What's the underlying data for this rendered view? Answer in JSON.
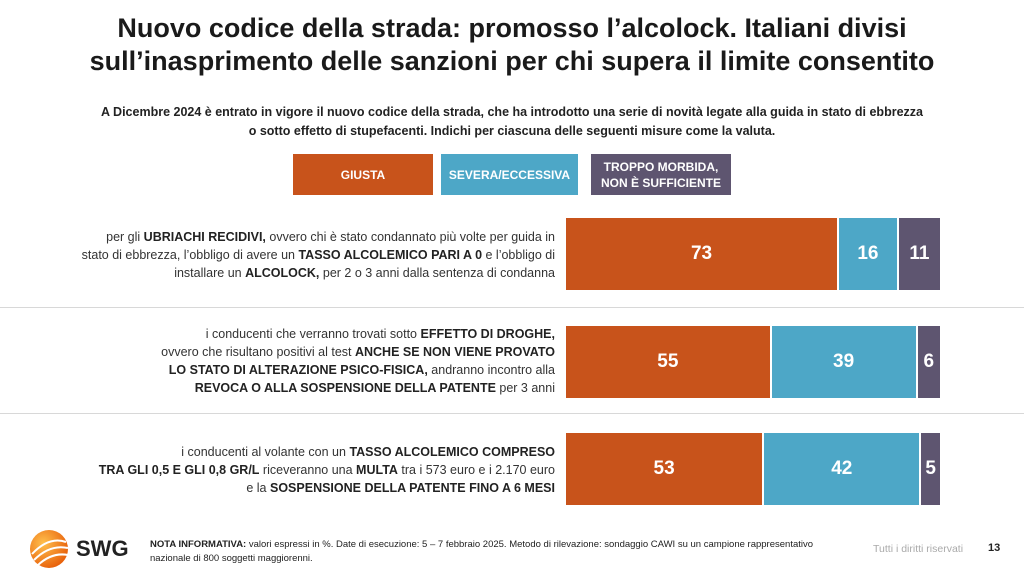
{
  "title_lines": [
    "Nuovo codice della strada: promosso l’alcolock. Italiani divisi",
    "sull’inasprimento delle sanzioni per chi supera il limite consentito"
  ],
  "subtitle_lines": [
    "A Dicembre 2024 è entrato in vigore il nuovo codice della strada, che ha introdotto una serie di novità legate alla guida in stato di ebbrezza",
    "o sotto effetto di stupefacenti. Indichi per ciascuna delle seguenti misure come la valuta."
  ],
  "legend": [
    {
      "label": "GIUSTA",
      "color": "#C8531B"
    },
    {
      "label": "SEVERA/ECCESSIVA",
      "color": "#4DA7C7"
    },
    {
      "label": "TROPPO MORBIDA,\nNON È SUFFICIENTE",
      "color": "#5E5570"
    }
  ],
  "rows": [
    {
      "lines": [
        [
          {
            "t": "per gli "
          },
          {
            "t": "UBRIACHI RECIDIVI,",
            "b": true
          },
          {
            "t": " ovvero chi è stato condannato più volte per guida in"
          }
        ],
        [
          {
            "t": "stato di ebbrezza, l’obbligo di avere un "
          },
          {
            "t": "TASSO ALCOLEMICO PARI A 0",
            "b": true
          },
          {
            "t": " e l’obbligo di"
          }
        ],
        [
          {
            "t": "installare un "
          },
          {
            "t": "ALCOLOCK,",
            "b": true
          },
          {
            "t": " per 2 o 3 anni dalla sentenza di condanna"
          }
        ]
      ]
    },
    {
      "lines": [
        [
          {
            "t": "i conducenti che verranno trovati sotto "
          },
          {
            "t": "EFFETTO DI DROGHE,",
            "b": true
          }
        ],
        [
          {
            "t": "ovvero che risultano positivi al test "
          },
          {
            "t": "ANCHE SE NON VIENE PROVATO",
            "b": true
          }
        ],
        [
          {
            "t": "LO STATO DI ALTERAZIONE PSICO-FISICA,",
            "b": true
          },
          {
            "t": " andranno incontro alla"
          }
        ],
        [
          {
            "t": "REVOCA O ALLA SOSPENSIONE DELLA PATENTE",
            "b": true
          },
          {
            "t": " per 3 anni"
          }
        ]
      ]
    },
    {
      "lines": [
        [
          {
            "t": "i conducenti al volante con un "
          },
          {
            "t": "TASSO ALCOLEMICO COMPRESO",
            "b": true
          }
        ],
        [
          {
            "t": "TRA GLI 0,5 E GLI 0,8 GR/L",
            "b": true
          },
          {
            "t": " riceveranno una "
          },
          {
            "t": "MULTA",
            "b": true
          },
          {
            "t": " tra i 573 euro e i 2.170 euro"
          }
        ],
        [
          {
            "t": "e la "
          },
          {
            "t": "SOSPENSIONE DELLA PATENTE FINO A 6 MESI",
            "b": true
          }
        ]
      ]
    }
  ],
  "chart_data": {
    "type": "bar",
    "orientation": "horizontal",
    "stacked": true,
    "unit": "%",
    "categories": [
      "Ubriachi recidivi: tasso alcolemico 0 e alcolock",
      "Effetto di droghe: revoca o sospensione patente",
      "Tasso alcolemico 0,5-0,8 gr/l: multa e sospensione patente"
    ],
    "series": [
      {
        "name": "GIUSTA",
        "values": [
          73,
          55,
          53
        ]
      },
      {
        "name": "SEVERA/ECCESSIVA",
        "values": [
          16,
          39,
          42
        ]
      },
      {
        "name": "TROPPO MORBIDA, NON È SUFFICIENTE",
        "values": [
          11,
          6,
          5
        ]
      }
    ],
    "xlim": [
      0,
      100
    ],
    "legend_position": "top"
  },
  "footer": {
    "logo": "SWG",
    "note_label": "NOTA INFORMATIVA:",
    "note_text": " valori espressi in %. Date di esecuzione: 5 – 7 febbraio 2025. Metodo di rilevazione: sondaggio CAWI su un campione rappresentativo nazionale di 800 soggetti maggiorenni.",
    "rights": "Tutti i diritti riservati",
    "page": "13"
  }
}
